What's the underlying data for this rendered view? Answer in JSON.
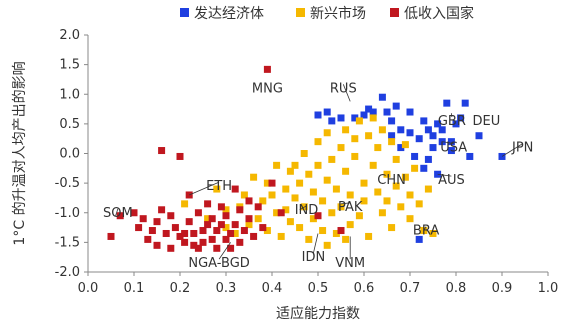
{
  "chart_data": {
    "type": "scatter",
    "title": "",
    "xlabel": "适应能力指数",
    "ylabel": "1°C 的升温对人均产出的影响",
    "xlim": [
      0.0,
      1.0
    ],
    "ylim": [
      -2.0,
      2.0
    ],
    "xticks": [
      "0.0",
      "0.1",
      "0.2",
      "0.3",
      "0.4",
      "0.5",
      "0.6",
      "0.7",
      "0.8",
      "0.9",
      "1.0"
    ],
    "yticks": [
      "2.0",
      "1.5",
      "1.0",
      "0.5",
      "0.0",
      "-0.5",
      "-1.0",
      "-1.5",
      "-2.0"
    ],
    "grid": false,
    "legend_position": "top",
    "colors": {
      "advanced": "#1f3fe0",
      "emerging": "#f5b800",
      "low_income": "#c0171f",
      "axis": "#888888"
    },
    "series": [
      {
        "name": "发达经济体",
        "color_key": "advanced",
        "points": [
          [
            0.5,
            0.65
          ],
          [
            0.52,
            0.7
          ],
          [
            0.53,
            0.55
          ],
          [
            0.55,
            0.6
          ],
          [
            0.58,
            0.6
          ],
          [
            0.6,
            0.65
          ],
          [
            0.61,
            0.75
          ],
          [
            0.62,
            0.7
          ],
          [
            0.64,
            0.95
          ],
          [
            0.65,
            0.7
          ],
          [
            0.66,
            0.55
          ],
          [
            0.67,
            0.8
          ],
          [
            0.66,
            0.3
          ],
          [
            0.68,
            0.4
          ],
          [
            0.7,
            0.35
          ],
          [
            0.7,
            0.7
          ],
          [
            0.72,
            0.25
          ],
          [
            0.73,
            0.55
          ],
          [
            0.74,
            0.4
          ],
          [
            0.75,
            0.3
          ],
          [
            0.75,
            0.1
          ],
          [
            0.76,
            0.5
          ],
          [
            0.77,
            0.4
          ],
          [
            0.77,
            0.2
          ],
          [
            0.78,
            0.85
          ],
          [
            0.79,
            0.05
          ],
          [
            0.79,
            0.2
          ],
          [
            0.8,
            0.5
          ],
          [
            0.81,
            0.6
          ],
          [
            0.82,
            0.85
          ],
          [
            0.83,
            -0.05
          ],
          [
            0.85,
            0.3
          ],
          [
            0.9,
            -0.05
          ],
          [
            0.68,
            0.1
          ],
          [
            0.71,
            -0.05
          ],
          [
            0.76,
            -0.35
          ],
          [
            0.73,
            -0.25
          ],
          [
            0.74,
            -0.1
          ],
          [
            0.72,
            -1.45
          ]
        ]
      },
      {
        "name": "新兴市场",
        "color_key": "emerging",
        "points": [
          [
            0.21,
            -0.85
          ],
          [
            0.26,
            -1.1
          ],
          [
            0.28,
            -0.6
          ],
          [
            0.3,
            -0.95
          ],
          [
            0.3,
            -1.25
          ],
          [
            0.32,
            -1.35
          ],
          [
            0.33,
            -0.9
          ],
          [
            0.34,
            -0.7
          ],
          [
            0.35,
            -1.2
          ],
          [
            0.36,
            -0.4
          ],
          [
            0.37,
            -1.1
          ],
          [
            0.38,
            -0.8
          ],
          [
            0.39,
            -0.5
          ],
          [
            0.39,
            -1.3
          ],
          [
            0.4,
            -0.7
          ],
          [
            0.41,
            -0.2
          ],
          [
            0.41,
            -1.0
          ],
          [
            0.42,
            -1.4
          ],
          [
            0.43,
            -0.6
          ],
          [
            0.43,
            -0.95
          ],
          [
            0.44,
            -0.3
          ],
          [
            0.44,
            -1.15
          ],
          [
            0.45,
            -0.75
          ],
          [
            0.45,
            -0.2
          ],
          [
            0.46,
            -1.25
          ],
          [
            0.46,
            -0.5
          ],
          [
            0.47,
            -0.9
          ],
          [
            0.47,
            0.0
          ],
          [
            0.48,
            -0.35
          ],
          [
            0.48,
            -1.45
          ],
          [
            0.49,
            -0.65
          ],
          [
            0.49,
            -1.1
          ],
          [
            0.5,
            -0.2
          ],
          [
            0.5,
            0.2
          ],
          [
            0.51,
            -0.8
          ],
          [
            0.51,
            -1.3
          ],
          [
            0.52,
            -0.45
          ],
          [
            0.52,
            0.35
          ],
          [
            0.53,
            -1.0
          ],
          [
            0.53,
            -0.1
          ],
          [
            0.54,
            -1.35
          ],
          [
            0.54,
            -0.6
          ],
          [
            0.55,
            0.1
          ],
          [
            0.55,
            -0.9
          ],
          [
            0.56,
            0.4
          ],
          [
            0.56,
            -0.3
          ],
          [
            0.57,
            -1.2
          ],
          [
            0.57,
            -0.7
          ],
          [
            0.58,
            0.25
          ],
          [
            0.58,
            -0.05
          ],
          [
            0.59,
            -1.05
          ],
          [
            0.59,
            0.55
          ],
          [
            0.6,
            -0.5
          ],
          [
            0.6,
            -0.8
          ],
          [
            0.61,
            0.3
          ],
          [
            0.61,
            -1.4
          ],
          [
            0.62,
            -0.2
          ],
          [
            0.62,
            0.6
          ],
          [
            0.63,
            -0.65
          ],
          [
            0.63,
            0.1
          ],
          [
            0.64,
            -1.0
          ],
          [
            0.64,
            0.4
          ],
          [
            0.65,
            -0.35
          ],
          [
            0.65,
            -0.8
          ],
          [
            0.66,
            0.2
          ],
          [
            0.66,
            -1.25
          ],
          [
            0.67,
            -0.1
          ],
          [
            0.67,
            -0.55
          ],
          [
            0.68,
            -0.9
          ],
          [
            0.69,
            -0.4
          ],
          [
            0.69,
            0.15
          ],
          [
            0.7,
            -0.7
          ],
          [
            0.7,
            -1.1
          ],
          [
            0.71,
            -0.25
          ],
          [
            0.72,
            -0.85
          ],
          [
            0.73,
            -1.3
          ],
          [
            0.74,
            -0.6
          ],
          [
            0.75,
            -1.35
          ],
          [
            0.56,
            -1.45
          ],
          [
            0.52,
            -1.55
          ]
        ]
      },
      {
        "name": "低收入国家",
        "color_key": "low_income",
        "points": [
          [
            0.05,
            -1.4
          ],
          [
            0.07,
            -1.05
          ],
          [
            0.1,
            -1.0
          ],
          [
            0.11,
            -1.25
          ],
          [
            0.12,
            -1.1
          ],
          [
            0.13,
            -1.45
          ],
          [
            0.14,
            -1.3
          ],
          [
            0.15,
            -1.55
          ],
          [
            0.15,
            -1.15
          ],
          [
            0.16,
            0.05
          ],
          [
            0.16,
            -0.95
          ],
          [
            0.17,
            -1.35
          ],
          [
            0.18,
            -1.6
          ],
          [
            0.18,
            -1.05
          ],
          [
            0.19,
            -1.25
          ],
          [
            0.2,
            -1.4
          ],
          [
            0.21,
            -1.5
          ],
          [
            0.22,
            -0.7
          ],
          [
            0.22,
            -1.15
          ],
          [
            0.23,
            -1.35
          ],
          [
            0.23,
            -1.55
          ],
          [
            0.24,
            -1.0
          ],
          [
            0.25,
            -1.3
          ],
          [
            0.25,
            -1.5
          ],
          [
            0.26,
            -1.2
          ],
          [
            0.27,
            -1.1
          ],
          [
            0.27,
            -1.45
          ],
          [
            0.28,
            -1.3
          ],
          [
            0.28,
            -1.6
          ],
          [
            0.29,
            -0.9
          ],
          [
            0.29,
            -1.2
          ],
          [
            0.3,
            -1.45
          ],
          [
            0.3,
            -1.05
          ],
          [
            0.31,
            -1.35
          ],
          [
            0.31,
            -1.6
          ],
          [
            0.32,
            -0.6
          ],
          [
            0.32,
            -1.2
          ],
          [
            0.33,
            -1.5
          ],
          [
            0.33,
            -0.95
          ],
          [
            0.34,
            -1.3
          ],
          [
            0.35,
            -0.8
          ],
          [
            0.35,
            -1.1
          ],
          [
            0.36,
            -1.4
          ],
          [
            0.37,
            -0.9
          ],
          [
            0.38,
            -1.25
          ],
          [
            0.39,
            1.42
          ],
          [
            0.4,
            -0.5
          ],
          [
            0.42,
            -1.0
          ],
          [
            0.2,
            -0.05
          ],
          [
            0.21,
            -1.35
          ],
          [
            0.26,
            -0.85
          ],
          [
            0.24,
            -1.6
          ],
          [
            0.5,
            -1.05
          ],
          [
            0.55,
            -1.3
          ]
        ]
      }
    ],
    "annotations": [
      {
        "label": "MNG",
        "x": 0.39,
        "y": 1.42,
        "tx": 0.39,
        "ty": 1.1,
        "leader": false
      },
      {
        "label": "RUS",
        "x": 0.57,
        "y": 0.88,
        "tx": 0.555,
        "ty": 1.1,
        "leader": true
      },
      {
        "label": "GBR",
        "x": 0.79,
        "y": 0.68,
        "tx": 0.791,
        "ty": 0.55,
        "leader": true
      },
      {
        "label": "DEU",
        "x": 0.86,
        "y": 0.45,
        "tx": 0.866,
        "ty": 0.55,
        "leader": false
      },
      {
        "label": "USA",
        "x": 0.77,
        "y": 0.2,
        "tx": 0.795,
        "ty": 0.1,
        "leader": true
      },
      {
        "label": "JPN",
        "x": 0.9,
        "y": -0.05,
        "tx": 0.945,
        "ty": 0.1,
        "leader": true
      },
      {
        "label": "AUS",
        "x": 0.76,
        "y": -0.35,
        "tx": 0.79,
        "ty": -0.45,
        "leader": true
      },
      {
        "label": "CHN",
        "x": 0.66,
        "y": -0.25,
        "tx": 0.66,
        "ty": -0.45,
        "leader": false
      },
      {
        "label": "ETH",
        "x": 0.22,
        "y": -0.7,
        "tx": 0.285,
        "ty": -0.55,
        "leader": true
      },
      {
        "label": "SOM",
        "x": 0.06,
        "y": -1.05,
        "tx": 0.065,
        "ty": -1.0,
        "leader": true
      },
      {
        "label": "IND",
        "x": 0.46,
        "y": -0.95,
        "tx": 0.475,
        "ty": -0.95,
        "leader": true
      },
      {
        "label": "PAK",
        "x": 0.55,
        "y": -0.85,
        "tx": 0.57,
        "ty": -0.9,
        "leader": true
      },
      {
        "label": "BRA",
        "x": 0.73,
        "y": -1.3,
        "tx": 0.735,
        "ty": -1.3,
        "leader": true
      },
      {
        "label": "NGA-BGD",
        "x": 0.31,
        "y": -1.5,
        "tx": 0.285,
        "ty": -1.85,
        "leader": true
      },
      {
        "label": "IDN",
        "x": 0.5,
        "y": -1.35,
        "tx": 0.49,
        "ty": -1.75,
        "leader": true
      },
      {
        "label": "VNM",
        "x": 0.57,
        "y": -1.4,
        "tx": 0.57,
        "ty": -1.85,
        "leader": true
      }
    ]
  }
}
